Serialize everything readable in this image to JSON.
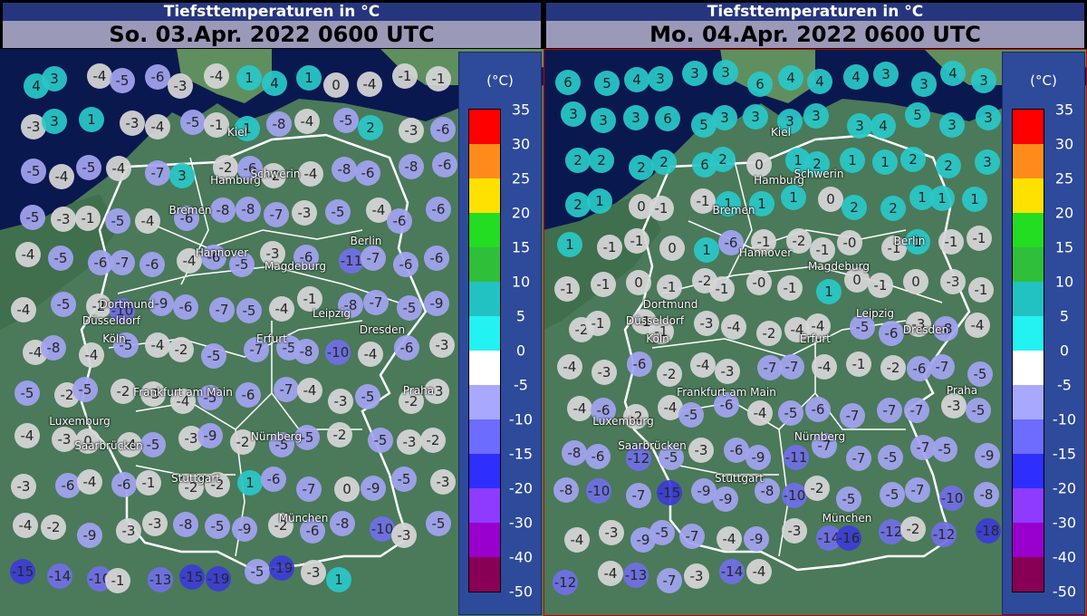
{
  "colors": {
    "legend_scale": [
      "#ff0000",
      "#ff8c1a",
      "#ffe100",
      "#22dd22",
      "#2fbf3a",
      "#22c2c2",
      "#22f2f2",
      "#ffffff",
      "#a8a8ff",
      "#6c6cff",
      "#2e2eff",
      "#8e3bff",
      "#9a00cc",
      "#880055"
    ],
    "station_fill": {
      "warm": "#29c8c8",
      "zero": "#d6d6d6",
      "m5": "#a3a3f0",
      "m10": "#7070e6",
      "m15": "#3c3cd6"
    }
  },
  "legend": {
    "unit": "(°C)",
    "labels": [
      "35",
      "30",
      "25",
      "20",
      "15",
      "10",
      "5",
      "0",
      "-5",
      "-10",
      "-15",
      "-20",
      "-30",
      "-40",
      "-50"
    ]
  },
  "panels": [
    {
      "title": "Tiefsttemperaturen in °C",
      "date": "So. 03.Apr. 2022 0600 UTC",
      "cities": [
        "Kiel",
        "Hamburg",
        "Schwerin",
        "Bremen",
        "Berlin",
        "Hannover",
        "Magdeburg",
        "Dortmund",
        "Düsseldorf",
        "Leipzig",
        "Köln",
        "Erfurt",
        "Dresden",
        "Frankfurt am Main",
        "Praha",
        "Luxemburg",
        "Nürnberg",
        "Saarbrücken",
        "Stuttgart",
        "München"
      ],
      "stations": [
        {
          "v": "4"
        },
        {
          "v": "3"
        },
        {
          "v": "-4"
        },
        {
          "v": "-5"
        },
        {
          "v": "-6"
        },
        {
          "v": "-3"
        },
        {
          "v": "-4"
        },
        {
          "v": "1"
        },
        {
          "v": "4"
        },
        {
          "v": "1"
        },
        {
          "v": "0"
        },
        {
          "v": "-4"
        },
        {
          "v": "-1"
        },
        {
          "v": "-1"
        },
        {
          "v": "-3"
        },
        {
          "v": "3"
        },
        {
          "v": "1"
        },
        {
          "v": "-3"
        },
        {
          "v": "-4"
        },
        {
          "v": "-5"
        },
        {
          "v": "-1"
        },
        {
          "v": "1"
        },
        {
          "v": "-8"
        },
        {
          "v": "-4"
        },
        {
          "v": "-5"
        },
        {
          "v": "2"
        },
        {
          "v": "-3"
        },
        {
          "v": "-6"
        },
        {
          "v": "-5"
        },
        {
          "v": "-4"
        },
        {
          "v": "-5"
        },
        {
          "v": "-4"
        },
        {
          "v": "-7"
        },
        {
          "v": "3"
        },
        {
          "v": "-2"
        },
        {
          "v": "-6"
        },
        {
          "v": "-2"
        },
        {
          "v": "-4"
        },
        {
          "v": "-8"
        },
        {
          "v": "-6"
        },
        {
          "v": "-8"
        },
        {
          "v": "-6"
        },
        {
          "v": "-5"
        },
        {
          "v": "-3"
        },
        {
          "v": "-1"
        },
        {
          "v": "-5"
        },
        {
          "v": "-4"
        },
        {
          "v": "-6"
        },
        {
          "v": "-8"
        },
        {
          "v": "-8"
        },
        {
          "v": "-7"
        },
        {
          "v": "-3"
        },
        {
          "v": "-5"
        },
        {
          "v": "-4"
        },
        {
          "v": "-6"
        },
        {
          "v": "-6"
        },
        {
          "v": "-4"
        },
        {
          "v": "-5"
        },
        {
          "v": "-6"
        },
        {
          "v": "-7"
        },
        {
          "v": "-6"
        },
        {
          "v": "-4"
        },
        {
          "v": "-6"
        },
        {
          "v": "-5"
        },
        {
          "v": "-3"
        },
        {
          "v": "-6"
        },
        {
          "v": "-11"
        },
        {
          "v": "-7"
        },
        {
          "v": "-6"
        },
        {
          "v": "-6"
        },
        {
          "v": "-4"
        },
        {
          "v": "-5"
        },
        {
          "v": "-2"
        },
        {
          "v": "-10"
        },
        {
          "v": "-9"
        },
        {
          "v": "-6"
        },
        {
          "v": "-7"
        },
        {
          "v": "-5"
        },
        {
          "v": "-4"
        },
        {
          "v": "-1"
        },
        {
          "v": "-8"
        },
        {
          "v": "-7"
        },
        {
          "v": "-5"
        },
        {
          "v": "-9"
        },
        {
          "v": "-4"
        },
        {
          "v": "-8"
        },
        {
          "v": "-4"
        },
        {
          "v": "-5"
        },
        {
          "v": "-4"
        },
        {
          "v": "-2"
        },
        {
          "v": "-5"
        },
        {
          "v": "-7"
        },
        {
          "v": "-5"
        },
        {
          "v": "-8"
        },
        {
          "v": "-10"
        },
        {
          "v": "-4"
        },
        {
          "v": "-6"
        },
        {
          "v": "-3"
        },
        {
          "v": "-5"
        },
        {
          "v": "-2"
        },
        {
          "v": "-5"
        },
        {
          "v": "-2"
        },
        {
          "v": "-3"
        },
        {
          "v": "-4"
        },
        {
          "v": "-5"
        },
        {
          "v": "-6"
        },
        {
          "v": "-7"
        },
        {
          "v": "-4"
        },
        {
          "v": "-3"
        },
        {
          "v": "-5"
        },
        {
          "v": "-2"
        },
        {
          "v": "-3"
        },
        {
          "v": "-4"
        },
        {
          "v": "-3"
        },
        {
          "v": "0"
        },
        {
          "v": "-4"
        },
        {
          "v": "-5"
        },
        {
          "v": "-3"
        },
        {
          "v": "-9"
        },
        {
          "v": "-2"
        },
        {
          "v": "-5"
        },
        {
          "v": "-5"
        },
        {
          "v": "-2"
        },
        {
          "v": "-5"
        },
        {
          "v": "-3"
        },
        {
          "v": "-2"
        },
        {
          "v": "-3"
        },
        {
          "v": "-6"
        },
        {
          "v": "-4"
        },
        {
          "v": "-6"
        },
        {
          "v": "-1"
        },
        {
          "v": "-2"
        },
        {
          "v": "-2"
        },
        {
          "v": "1"
        },
        {
          "v": "-6"
        },
        {
          "v": "-7"
        },
        {
          "v": "0"
        },
        {
          "v": "-9"
        },
        {
          "v": "-5"
        },
        {
          "v": "-3"
        },
        {
          "v": "-4"
        },
        {
          "v": "-2"
        },
        {
          "v": "-9"
        },
        {
          "v": "-3"
        },
        {
          "v": "-3"
        },
        {
          "v": "-8"
        },
        {
          "v": "-5"
        },
        {
          "v": "-9"
        },
        {
          "v": "-2"
        },
        {
          "v": "-6"
        },
        {
          "v": "-8"
        },
        {
          "v": "-10"
        },
        {
          "v": "-3"
        },
        {
          "v": "-5"
        },
        {
          "v": "-15"
        },
        {
          "v": "-14"
        },
        {
          "v": "-10"
        },
        {
          "v": "-1"
        },
        {
          "v": "-13"
        },
        {
          "v": "-15"
        },
        {
          "v": "-19"
        },
        {
          "v": "-5"
        },
        {
          "v": "-19"
        },
        {
          "v": "-3"
        },
        {
          "v": "1"
        }
      ]
    },
    {
      "title": "Tiefsttemperaturen in °C",
      "date": "Mo. 04.Apr. 2022 0600 UTC",
      "cities": [
        "Kiel",
        "Hamburg",
        "Schwerin",
        "Bremen",
        "Berlin",
        "Hannover",
        "Magdeburg",
        "Dortmund",
        "Düsseldorf",
        "Leipzig",
        "Köln",
        "Erfurt",
        "Dresden",
        "Frankfurt am Main",
        "Praha",
        "Luxemburg",
        "Nürnberg",
        "Saarbrücken",
        "Stuttgart",
        "München"
      ],
      "stations": [
        {
          "v": "6"
        },
        {
          "v": "5"
        },
        {
          "v": "4"
        },
        {
          "v": "3"
        },
        {
          "v": "3"
        },
        {
          "v": "3"
        },
        {
          "v": "6"
        },
        {
          "v": "4"
        },
        {
          "v": "4"
        },
        {
          "v": "4"
        },
        {
          "v": "3"
        },
        {
          "v": "3"
        },
        {
          "v": "4"
        },
        {
          "v": "3"
        },
        {
          "v": "3"
        },
        {
          "v": "3"
        },
        {
          "v": "3"
        },
        {
          "v": "6"
        },
        {
          "v": "5"
        },
        {
          "v": "3"
        },
        {
          "v": "3"
        },
        {
          "v": "3"
        },
        {
          "v": "3"
        },
        {
          "v": "3"
        },
        {
          "v": "4"
        },
        {
          "v": "5"
        },
        {
          "v": "3"
        },
        {
          "v": "3"
        },
        {
          "v": "2"
        },
        {
          "v": "2"
        },
        {
          "v": "2"
        },
        {
          "v": "2"
        },
        {
          "v": "6"
        },
        {
          "v": "2"
        },
        {
          "v": "0"
        },
        {
          "v": "1"
        },
        {
          "v": "2"
        },
        {
          "v": "1"
        },
        {
          "v": "1"
        },
        {
          "v": "2"
        },
        {
          "v": "2"
        },
        {
          "v": "3"
        },
        {
          "v": "2"
        },
        {
          "v": "1"
        },
        {
          "v": "0"
        },
        {
          "v": "-1"
        },
        {
          "v": "-1"
        },
        {
          "v": "1"
        },
        {
          "v": "1"
        },
        {
          "v": "1"
        },
        {
          "v": "0"
        },
        {
          "v": "2"
        },
        {
          "v": "2"
        },
        {
          "v": "1"
        },
        {
          "v": "1"
        },
        {
          "v": "1"
        },
        {
          "v": "1"
        },
        {
          "v": "-1"
        },
        {
          "v": "-1"
        },
        {
          "v": "0"
        },
        {
          "v": "1"
        },
        {
          "v": "-6"
        },
        {
          "v": "-1"
        },
        {
          "v": "-2"
        },
        {
          "v": "-1"
        },
        {
          "v": "-0"
        },
        {
          "v": "-1"
        },
        {
          "v": "1"
        },
        {
          "v": "-1"
        },
        {
          "v": "-1"
        },
        {
          "v": "-1"
        },
        {
          "v": "-1"
        },
        {
          "v": "0"
        },
        {
          "v": "-1"
        },
        {
          "v": "-2"
        },
        {
          "v": "-1"
        },
        {
          "v": "-0"
        },
        {
          "v": "-1"
        },
        {
          "v": "1"
        },
        {
          "v": "0"
        },
        {
          "v": "-1"
        },
        {
          "v": "0"
        },
        {
          "v": "-3"
        },
        {
          "v": "-1"
        },
        {
          "v": "-2"
        },
        {
          "v": "-1"
        },
        {
          "v": "-1"
        },
        {
          "v": "-1"
        },
        {
          "v": "-3"
        },
        {
          "v": "-4"
        },
        {
          "v": "-2"
        },
        {
          "v": "-4"
        },
        {
          "v": "-4"
        },
        {
          "v": "-5"
        },
        {
          "v": "-6"
        },
        {
          "v": "-3"
        },
        {
          "v": "-8"
        },
        {
          "v": "-4"
        },
        {
          "v": "-4"
        },
        {
          "v": "-3"
        },
        {
          "v": "-6"
        },
        {
          "v": "-2"
        },
        {
          "v": "-4"
        },
        {
          "v": "-3"
        },
        {
          "v": "-7"
        },
        {
          "v": "-7"
        },
        {
          "v": "-4"
        },
        {
          "v": "-1"
        },
        {
          "v": "-2"
        },
        {
          "v": "-6"
        },
        {
          "v": "-7"
        },
        {
          "v": "-5"
        },
        {
          "v": "-4"
        },
        {
          "v": "-6"
        },
        {
          "v": "-2"
        },
        {
          "v": "-4"
        },
        {
          "v": "-5"
        },
        {
          "v": "-6"
        },
        {
          "v": "-4"
        },
        {
          "v": "-5"
        },
        {
          "v": "-6"
        },
        {
          "v": "-7"
        },
        {
          "v": "-7"
        },
        {
          "v": "-7"
        },
        {
          "v": "-3"
        },
        {
          "v": "-5"
        },
        {
          "v": "-8"
        },
        {
          "v": "-6"
        },
        {
          "v": "-12"
        },
        {
          "v": "-5"
        },
        {
          "v": "-3"
        },
        {
          "v": "-6"
        },
        {
          "v": "-9"
        },
        {
          "v": "-11"
        },
        {
          "v": "-7"
        },
        {
          "v": "-7"
        },
        {
          "v": "-5"
        },
        {
          "v": "-7"
        },
        {
          "v": "-5"
        },
        {
          "v": "-9"
        },
        {
          "v": "-8"
        },
        {
          "v": "-10"
        },
        {
          "v": "-7"
        },
        {
          "v": "-15"
        },
        {
          "v": "-9"
        },
        {
          "v": "-9"
        },
        {
          "v": "-8"
        },
        {
          "v": "-10"
        },
        {
          "v": "-2"
        },
        {
          "v": "-5"
        },
        {
          "v": "-5"
        },
        {
          "v": "-7"
        },
        {
          "v": "-10"
        },
        {
          "v": "-8"
        },
        {
          "v": "-4"
        },
        {
          "v": "-3"
        },
        {
          "v": "-9"
        },
        {
          "v": "-5"
        },
        {
          "v": "-7"
        },
        {
          "v": "-4"
        },
        {
          "v": "-9"
        },
        {
          "v": "-3"
        },
        {
          "v": "-14"
        },
        {
          "v": "-16"
        },
        {
          "v": "-12"
        },
        {
          "v": "-2"
        },
        {
          "v": "-12"
        },
        {
          "v": "-18"
        },
        {
          "v": "-12"
        },
        {
          "v": "-4"
        },
        {
          "v": "-13"
        },
        {
          "v": "-7"
        },
        {
          "v": "-3"
        },
        {
          "v": "-14"
        },
        {
          "v": "-4"
        }
      ]
    }
  ]
}
